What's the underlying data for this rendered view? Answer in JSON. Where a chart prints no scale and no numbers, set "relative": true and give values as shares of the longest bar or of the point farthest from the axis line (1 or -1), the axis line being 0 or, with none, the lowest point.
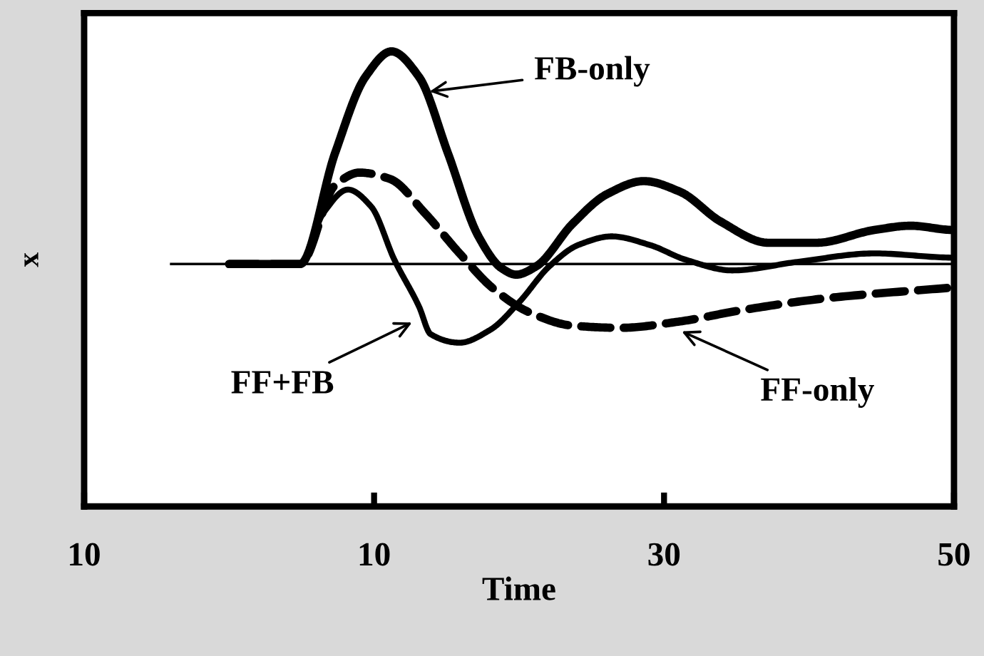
{
  "chart_data": {
    "type": "line",
    "relative": true,
    "xlabel": "Time",
    "ylabel": "x",
    "xlim": [
      -10,
      50
    ],
    "xticks": [
      {
        "value": -10,
        "label": "10"
      },
      10,
      30,
      50
    ],
    "tick_labels": "x",
    "grid": false,
    "legend": false,
    "marker": "none",
    "series": [
      {
        "color": "#000000",
        "line_style": "solid",
        "x": [
          0,
          4.9,
          7.3,
          9.4,
          11.2,
          13.1,
          15.1,
          17.2,
          18.8,
          19.8,
          21.2,
          23.7,
          26.1,
          28.6,
          31.1,
          33.9,
          37.2,
          40.5,
          44.5,
          47,
          50
        ],
        "values": [
          0,
          0,
          0.52,
          0.88,
          1,
          0.88,
          0.52,
          0.13,
          -0.02,
          -0.05,
          -0.01,
          0.19,
          0.33,
          0.39,
          0.34,
          0.2,
          0.1,
          0.1,
          0.16,
          0.18,
          0.16
        ]
      },
      {
        "color": "#000000",
        "line_style": "solid",
        "x": [
          0,
          4.9,
          6.5,
          8.2,
          9.8,
          11.4,
          13.1,
          13.9,
          15.9,
          18,
          20,
          22.1,
          24.1,
          26.4,
          29,
          31.5,
          34.7,
          39.2,
          44.5,
          50
        ],
        "values": [
          0,
          0,
          0.24,
          0.35,
          0.27,
          0.02,
          -0.2,
          -0.33,
          -0.37,
          -0.31,
          -0.18,
          -0.01,
          0.09,
          0.13,
          0.09,
          0.02,
          -0.03,
          0.01,
          0.05,
          0.03
        ]
      },
      {
        "color": "#000000",
        "line_style": "dashed",
        "x": [
          0,
          4.9,
          7.3,
          9,
          11.1,
          13.5,
          15.9,
          18.3,
          20.8,
          23.7,
          27,
          31.1,
          35.1,
          41.3,
          50
        ],
        "values": [
          0,
          0,
          0.37,
          0.43,
          0.4,
          0.24,
          0.05,
          -0.12,
          -0.23,
          -0.29,
          -0.3,
          -0.27,
          -0.22,
          -0.16,
          -0.11
        ]
      }
    ],
    "ref_lines": [
      {
        "axis": "y",
        "value": 0,
        "color": "#000000",
        "line_style": "solid"
      }
    ],
    "annotations": [
      "FB-only",
      "FF+FB",
      "FF-only"
    ]
  }
}
